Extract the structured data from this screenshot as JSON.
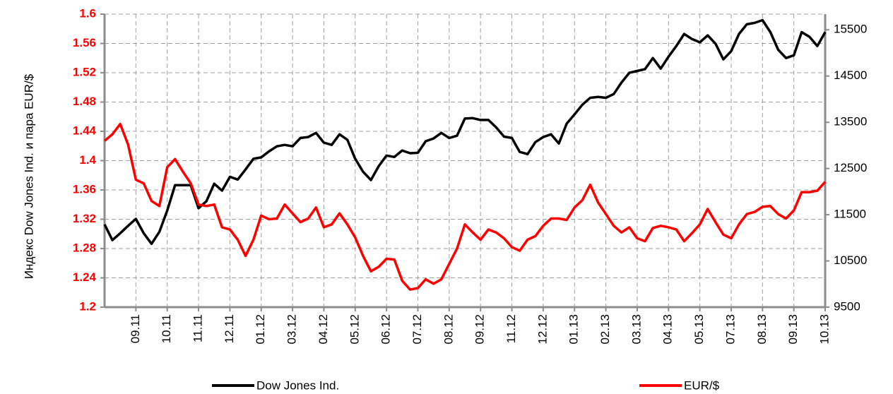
{
  "chart_data": {
    "type": "line",
    "y_label": "Индекс Dow Jones Ind. и пара EUR/$",
    "categories": [
      null,
      null,
      null,
      null,
      "09.11",
      null,
      null,
      null,
      "10.11",
      null,
      null,
      null,
      "11.11",
      null,
      null,
      null,
      "12.11",
      null,
      null,
      null,
      "01.12",
      null,
      null,
      null,
      "03.12",
      null,
      null,
      null,
      "04.12",
      null,
      null,
      null,
      "05.12",
      null,
      null,
      null,
      "06.12",
      null,
      null,
      null,
      "07.12",
      null,
      null,
      null,
      "08.12",
      null,
      null,
      null,
      "09.12",
      null,
      null,
      null,
      "11.12",
      null,
      null,
      null,
      "12.12",
      null,
      null,
      null,
      "01.13",
      null,
      null,
      null,
      "02.13",
      null,
      null,
      null,
      "03.13",
      null,
      null,
      null,
      "04.13",
      null,
      null,
      null,
      "05.13",
      null,
      null,
      null,
      "07.13",
      null,
      null,
      null,
      "08.13",
      null,
      null,
      null,
      "09.13",
      null,
      null,
      null,
      "10.13"
    ],
    "series": [
      {
        "name": "Dow Jones Ind.",
        "color": "#000000",
        "axis": "y2",
        "values": [
          11290,
          10950,
          11100,
          11260,
          11410,
          11100,
          10870,
          11130,
          11590,
          12140,
          12140,
          12140,
          11640,
          11790,
          12170,
          12020,
          12320,
          12260,
          12480,
          12710,
          12740,
          12870,
          12980,
          13010,
          12980,
          13160,
          13180,
          13270,
          13060,
          13010,
          13240,
          13120,
          12710,
          12430,
          12250,
          12550,
          12780,
          12750,
          12890,
          12830,
          12840,
          13090,
          13150,
          13270,
          13160,
          13210,
          13580,
          13590,
          13550,
          13550,
          13390,
          13190,
          13160,
          12860,
          12810,
          13070,
          13180,
          13240,
          13040,
          13470,
          13670,
          13880,
          14030,
          14050,
          14030,
          14110,
          14360,
          14570,
          14610,
          14650,
          14890,
          14660,
          14920,
          15150,
          15410,
          15300,
          15230,
          15380,
          15200,
          14860,
          15040,
          15410,
          15620,
          15650,
          15710,
          15450,
          15070,
          14890,
          14950,
          15450,
          15350,
          15150,
          15450
        ]
      },
      {
        "name": "EUR/$",
        "color": "#ff0000",
        "axis": "y",
        "values": [
          1.427,
          1.436,
          1.45,
          1.422,
          1.374,
          1.369,
          1.345,
          1.338,
          1.391,
          1.402,
          1.385,
          1.369,
          1.34,
          1.338,
          1.34,
          1.309,
          1.306,
          1.292,
          1.27,
          1.292,
          1.325,
          1.32,
          1.321,
          1.34,
          1.328,
          1.316,
          1.321,
          1.336,
          1.309,
          1.313,
          1.328,
          1.313,
          1.295,
          1.27,
          1.249,
          1.255,
          1.266,
          1.265,
          1.236,
          1.224,
          1.226,
          1.238,
          1.232,
          1.238,
          1.259,
          1.28,
          1.313,
          1.302,
          1.292,
          1.306,
          1.302,
          1.294,
          1.282,
          1.277,
          1.292,
          1.297,
          1.311,
          1.321,
          1.321,
          1.319,
          1.336,
          1.346,
          1.367,
          1.343,
          1.327,
          1.311,
          1.302,
          1.309,
          1.294,
          1.29,
          1.308,
          1.311,
          1.309,
          1.306,
          1.29,
          1.301,
          1.313,
          1.334,
          1.316,
          1.299,
          1.294,
          1.313,
          1.327,
          1.33,
          1.337,
          1.338,
          1.327,
          1.321,
          1.332,
          1.357,
          1.357,
          1.359,
          1.371
        ]
      }
    ],
    "ylim": [
      1.2,
      1.6
    ],
    "yticks": [
      1.2,
      1.24,
      1.28,
      1.32,
      1.36,
      1.4,
      1.44,
      1.48,
      1.52,
      1.56,
      1.6
    ],
    "y2lim": [
      9500,
      15840
    ],
    "y2ticks": [
      9500,
      10500,
      11500,
      12500,
      13500,
      14500,
      15500
    ],
    "grid": true,
    "legend": "bottom"
  }
}
